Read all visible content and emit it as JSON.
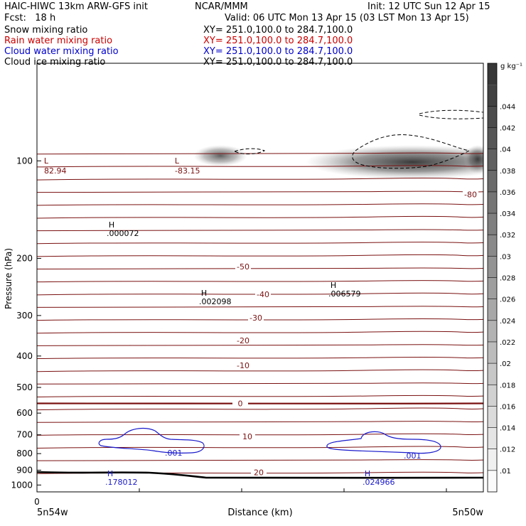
{
  "header": {
    "title_left": "HAIC-HIWC 13km ARW-GFS init",
    "title_mid": "NCAR/MMM",
    "init": "Init: 12 UTC Sun 12 Apr 15",
    "fcst": "Fcst:   18 h",
    "valid": "Valid: 06 UTC Mon 13 Apr 15 (03 LST Mon 13 Apr 15)"
  },
  "fields": [
    {
      "name": "Snow mixing ratio",
      "xy": "XY= 251.0,100.0 to 284.7,100.0",
      "color": "#000000"
    },
    {
      "name": "Rain water mixing ratio",
      "xy": "XY= 251.0,100.0 to 284.7,100.0",
      "color": "#cc0000"
    },
    {
      "name": "Cloud water mixing ratio",
      "xy": "XY= 251.0,100.0 to 284.7,100.0",
      "color": "#0000cc"
    },
    {
      "name": "Cloud ice mixing ratio",
      "xy": "XY= 251.0,100.0 to 284.7,100.0",
      "color": "#000000"
    }
  ],
  "colors": {
    "temperature": "#7a1010",
    "cloud_water": "#1a1acc",
    "snow": "#000000",
    "terrain": "#000000"
  },
  "chart_data": {
    "type": "heatmap",
    "xlabel": "Distance (km)",
    "ylabel": "Pressure (hPa)",
    "ylim": [
      1050,
      50
    ],
    "y_scale": "log",
    "x_start_label": "0",
    "x_left_label": "5n54w",
    "x_right_label": "5n50w",
    "y_ticks": [
      100,
      200,
      300,
      400,
      500,
      600,
      700,
      800,
      900,
      1000
    ],
    "colorbar": {
      "unit": "g kg⁻¹",
      "ticks": [
        ".01",
        ".012",
        ".014",
        ".016",
        ".018",
        ".02",
        ".022",
        ".024",
        ".026",
        ".028",
        ".03",
        ".032",
        ".034",
        ".036",
        ".038",
        ".04",
        ".042",
        ".044"
      ]
    },
    "temperature_contours": [
      {
        "value": "-80",
        "p": 127
      },
      {
        "value": "-50",
        "p": 212
      },
      {
        "value": "-40",
        "p": 258
      },
      {
        "value": "-30",
        "p": 305
      },
      {
        "value": "-20",
        "p": 358
      },
      {
        "value": "-10",
        "p": 427
      },
      {
        "value": "0",
        "p": 560
      },
      {
        "value": "10",
        "p": 708
      },
      {
        "value": "20",
        "p": 915
      }
    ],
    "extrema": [
      {
        "type": "L",
        "value": "82.94",
        "p": 94
      },
      {
        "type": "L",
        "value": "-83.15",
        "p": 94
      },
      {
        "type": "H",
        "value": ".000072",
        "p": 158
      },
      {
        "type": "H",
        "value": ".002098",
        "p": 257
      },
      {
        "type": "H",
        "value": ".006579",
        "p": 243
      },
      {
        "type": "H",
        "value": ".178012",
        "p": 925
      },
      {
        "type": "H",
        "value": ".024966",
        "p": 925
      }
    ],
    "cloud_water_labels": [
      ".001",
      ".001"
    ]
  }
}
